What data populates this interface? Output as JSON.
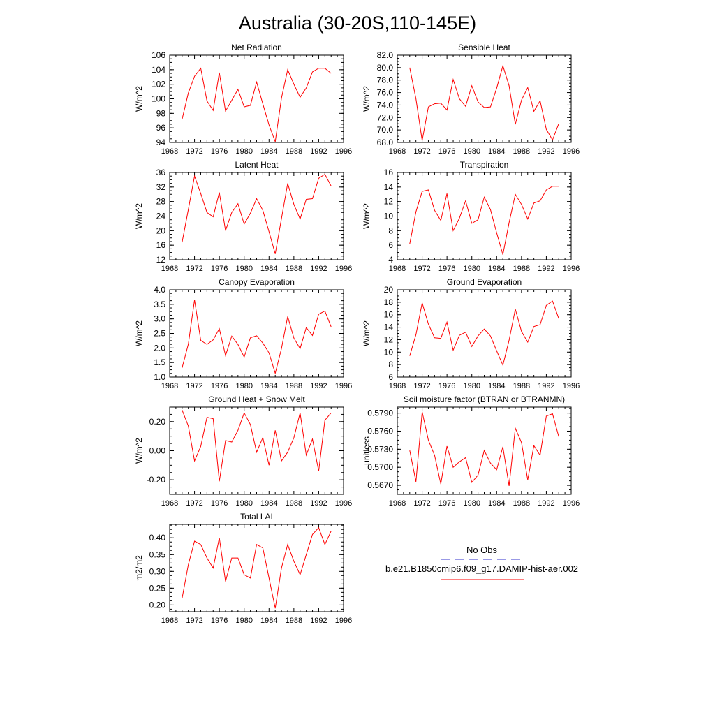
{
  "figure": {
    "title": "Australia (30-20S,110-145E)",
    "legend": {
      "obs_label": "No Obs",
      "obs_color": "#3333cc",
      "model_label": "b.e21.B1850cmip6.f09_g17.DAMIP-hist-aer.002",
      "model_color": "#ff0000"
    }
  },
  "chart_data": [
    {
      "type": "line",
      "title": "Net Radiation",
      "ylabel": "W/m^2",
      "xlim": [
        1968,
        1996
      ],
      "ylim": [
        94,
        106
      ],
      "xticks": [
        "1968",
        "1972",
        "1976",
        "1980",
        "1984",
        "1988",
        "1992",
        "1996"
      ],
      "yticks": [
        "94",
        "96",
        "98",
        "100",
        "102",
        "104",
        "106"
      ],
      "x": [
        1970,
        1971,
        1972,
        1973,
        1974,
        1975,
        1976,
        1977,
        1978,
        1979,
        1980,
        1981,
        1982,
        1983,
        1984,
        1985,
        1986,
        1987,
        1988,
        1989,
        1990,
        1991,
        1992,
        1993,
        1994
      ],
      "values": [
        97.2,
        100.8,
        103.1,
        104.2,
        99.7,
        98.4,
        103.6,
        98.3,
        99.8,
        101.3,
        98.9,
        99.1,
        102.3,
        99.3,
        96.4,
        94.1,
        100.1,
        104.0,
        102.0,
        100.2,
        101.5,
        103.7,
        104.2,
        104.2,
        103.5
      ]
    },
    {
      "type": "line",
      "title": "Sensible Heat",
      "ylabel": "W/m^2",
      "xlim": [
        1968,
        1996
      ],
      "ylim": [
        68,
        82
      ],
      "xticks": [
        "1968",
        "1972",
        "1976",
        "1980",
        "1984",
        "1988",
        "1992",
        "1996"
      ],
      "yticks": [
        "68.0",
        "70.0",
        "72.0",
        "74.0",
        "76.0",
        "78.0",
        "80.0",
        "82.0"
      ],
      "x": [
        1970,
        1971,
        1972,
        1973,
        1974,
        1975,
        1976,
        1977,
        1978,
        1979,
        1980,
        1981,
        1982,
        1983,
        1984,
        1985,
        1986,
        1987,
        1988,
        1989,
        1990,
        1991,
        1992,
        1993,
        1994
      ],
      "values": [
        80.0,
        75.0,
        68.3,
        73.7,
        74.2,
        74.3,
        73.2,
        78.1,
        75.0,
        73.8,
        77.1,
        74.5,
        73.6,
        73.7,
        76.7,
        80.3,
        77.1,
        70.9,
        74.8,
        76.8,
        73.0,
        74.7,
        70.1,
        68.4,
        71.0
      ]
    },
    {
      "type": "line",
      "title": "Latent Heat",
      "ylabel": "W/m^2",
      "xlim": [
        1968,
        1996
      ],
      "ylim": [
        12,
        36
      ],
      "xticks": [
        "1968",
        "1972",
        "1976",
        "1980",
        "1984",
        "1988",
        "1992",
        "1996"
      ],
      "yticks": [
        "12",
        "16",
        "20",
        "24",
        "28",
        "32",
        "36"
      ],
      "x": [
        1970,
        1971,
        1972,
        1973,
        1974,
        1975,
        1976,
        1977,
        1978,
        1979,
        1980,
        1981,
        1982,
        1983,
        1984,
        1985,
        1986,
        1987,
        1988,
        1989,
        1990,
        1991,
        1992,
        1993,
        1994
      ],
      "values": [
        16.8,
        25.8,
        35.0,
        30.2,
        25.0,
        23.8,
        30.5,
        20.0,
        25.0,
        27.4,
        21.8,
        24.8,
        28.8,
        25.6,
        19.7,
        13.6,
        23.3,
        33.0,
        27.2,
        23.2,
        28.6,
        28.8,
        34.4,
        35.5,
        32.3
      ]
    },
    {
      "type": "line",
      "title": "Transpiration",
      "ylabel": "W/m^2",
      "xlim": [
        1968,
        1996
      ],
      "ylim": [
        4,
        16
      ],
      "xticks": [
        "1968",
        "1972",
        "1976",
        "1980",
        "1984",
        "1988",
        "1992",
        "1996"
      ],
      "yticks": [
        "4",
        "6",
        "8",
        "10",
        "12",
        "14",
        "16"
      ],
      "x": [
        1970,
        1971,
        1972,
        1973,
        1974,
        1975,
        1976,
        1977,
        1978,
        1979,
        1980,
        1981,
        1982,
        1983,
        1984,
        1985,
        1986,
        1987,
        1988,
        1989,
        1990,
        1991,
        1992,
        1993,
        1994
      ],
      "values": [
        6.2,
        10.6,
        13.4,
        13.6,
        10.8,
        9.4,
        13.1,
        8.0,
        9.7,
        12.1,
        9.0,
        9.5,
        12.6,
        10.9,
        7.7,
        4.7,
        9.1,
        13.0,
        11.6,
        9.6,
        11.8,
        12.1,
        13.6,
        14.1,
        14.1
      ]
    },
    {
      "type": "line",
      "title": "Canopy Evaporation",
      "ylabel": "W/m^2",
      "xlim": [
        1968,
        1996
      ],
      "ylim": [
        1.0,
        4.0
      ],
      "xticks": [
        "1968",
        "1972",
        "1976",
        "1980",
        "1984",
        "1988",
        "1992",
        "1996"
      ],
      "yticks": [
        "1.0",
        "1.5",
        "2.0",
        "2.5",
        "3.0",
        "3.5",
        "4.0"
      ],
      "x": [
        1970,
        1971,
        1972,
        1973,
        1974,
        1975,
        1976,
        1977,
        1978,
        1979,
        1980,
        1981,
        1982,
        1983,
        1984,
        1985,
        1986,
        1987,
        1988,
        1989,
        1990,
        1991,
        1992,
        1993,
        1994
      ],
      "values": [
        1.32,
        2.13,
        3.65,
        2.26,
        2.12,
        2.28,
        2.66,
        1.74,
        2.41,
        2.12,
        1.69,
        2.35,
        2.42,
        2.17,
        1.83,
        1.13,
        1.98,
        3.08,
        2.34,
        1.98,
        2.7,
        2.43,
        3.16,
        3.27,
        2.73
      ]
    },
    {
      "type": "line",
      "title": "Ground Evaporation",
      "ylabel": "W/m^2",
      "xlim": [
        1968,
        1996
      ],
      "ylim": [
        6,
        20
      ],
      "xticks": [
        "1968",
        "1972",
        "1976",
        "1980",
        "1984",
        "1988",
        "1992",
        "1996"
      ],
      "yticks": [
        "6",
        "8",
        "10",
        "12",
        "14",
        "16",
        "18",
        "20"
      ],
      "x": [
        1970,
        1971,
        1972,
        1973,
        1974,
        1975,
        1976,
        1977,
        1978,
        1979,
        1980,
        1981,
        1982,
        1983,
        1984,
        1985,
        1986,
        1987,
        1988,
        1989,
        1990,
        1991,
        1992,
        1993,
        1994
      ],
      "values": [
        9.4,
        12.8,
        17.9,
        14.5,
        12.3,
        12.2,
        14.8,
        10.3,
        12.7,
        13.2,
        10.9,
        12.6,
        13.7,
        12.6,
        10.2,
        7.9,
        11.9,
        16.9,
        13.3,
        11.6,
        14.1,
        14.4,
        17.5,
        18.2,
        15.4
      ]
    },
    {
      "type": "line",
      "title": "Ground Heat + Snow Melt",
      "ylabel": "W/m^2",
      "xlim": [
        1968,
        1996
      ],
      "ylim": [
        -0.3,
        0.3
      ],
      "xticks": [
        "1968",
        "1972",
        "1976",
        "1980",
        "1984",
        "1988",
        "1992",
        "1996"
      ],
      "yticks": [
        "-0.20",
        "0.00",
        "0.20"
      ],
      "ytick_values": [
        -0.2,
        0.0,
        0.2
      ],
      "x": [
        1970,
        1971,
        1972,
        1973,
        1974,
        1975,
        1976,
        1977,
        1978,
        1979,
        1980,
        1981,
        1982,
        1983,
        1984,
        1985,
        1986,
        1987,
        1988,
        1989,
        1990,
        1991,
        1992,
        1993,
        1994
      ],
      "values": [
        0.28,
        0.17,
        -0.07,
        0.03,
        0.23,
        0.22,
        -0.21,
        0.07,
        0.06,
        0.14,
        0.26,
        0.18,
        -0.01,
        0.09,
        -0.1,
        0.14,
        -0.07,
        -0.01,
        0.09,
        0.26,
        -0.03,
        0.08,
        -0.14,
        0.21,
        0.26
      ]
    },
    {
      "type": "line",
      "title": "Soil moisture factor (BTRAN or BTRANMN)",
      "ylabel": "unitless",
      "xlim": [
        1968,
        1996
      ],
      "ylim": [
        0.5655,
        0.58
      ],
      "xticks": [
        "1968",
        "1972",
        "1976",
        "1980",
        "1984",
        "1988",
        "1992",
        "1996"
      ],
      "yticks": [
        "0.5670",
        "0.5700",
        "0.5730",
        "0.5760",
        "0.5790"
      ],
      "ytick_values": [
        0.567,
        0.57,
        0.573,
        0.576,
        0.579
      ],
      "x": [
        1970,
        1971,
        1972,
        1973,
        1974,
        1975,
        1976,
        1977,
        1978,
        1979,
        1980,
        1981,
        1982,
        1983,
        1984,
        1985,
        1986,
        1987,
        1988,
        1989,
        1990,
        1991,
        1992,
        1993,
        1994
      ],
      "values": [
        0.5728,
        0.5676,
        0.5792,
        0.5745,
        0.572,
        0.5672,
        0.5735,
        0.57,
        0.5709,
        0.5716,
        0.5675,
        0.5687,
        0.5728,
        0.5707,
        0.5696,
        0.5734,
        0.5669,
        0.5765,
        0.5741,
        0.5679,
        0.5736,
        0.572,
        0.5785,
        0.5789,
        0.5751
      ]
    },
    {
      "type": "line",
      "title": "Total LAI",
      "ylabel": "m2/m2",
      "xlim": [
        1968,
        1996
      ],
      "ylim": [
        0.18,
        0.44
      ],
      "xticks": [
        "1968",
        "1972",
        "1976",
        "1980",
        "1984",
        "1988",
        "1992",
        "1996"
      ],
      "yticks": [
        "0.20",
        "0.25",
        "0.30",
        "0.35",
        "0.40"
      ],
      "ytick_values": [
        0.2,
        0.25,
        0.3,
        0.35,
        0.4
      ],
      "x": [
        1970,
        1971,
        1972,
        1973,
        1974,
        1975,
        1976,
        1977,
        1978,
        1979,
        1980,
        1981,
        1982,
        1983,
        1984,
        1985,
        1986,
        1987,
        1988,
        1989,
        1990,
        1991,
        1992,
        1993,
        1994
      ],
      "values": [
        0.22,
        0.32,
        0.39,
        0.38,
        0.34,
        0.31,
        0.4,
        0.27,
        0.34,
        0.34,
        0.29,
        0.28,
        0.38,
        0.37,
        0.28,
        0.19,
        0.31,
        0.38,
        0.33,
        0.29,
        0.35,
        0.41,
        0.43,
        0.38,
        0.42
      ]
    }
  ]
}
